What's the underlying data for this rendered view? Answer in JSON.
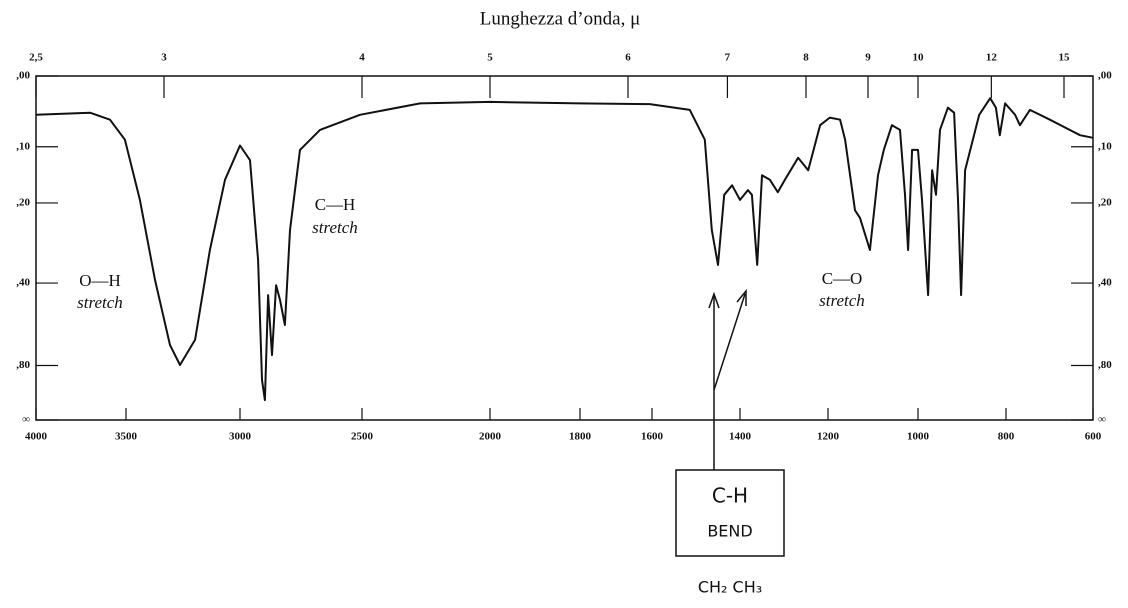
{
  "chart_data": {
    "type": "line",
    "x2label": "Lunghezza d’onda, μ",
    "x": [
      4000,
      3700,
      3589,
      3506,
      3439,
      3373,
      3307,
      3263,
      3197,
      3132,
      3066,
      3000,
      2959,
      2926,
      2910,
      2898,
      2885,
      2869,
      2852,
      2836,
      2816,
      2795,
      2754,
      2672,
      2508,
      2273,
      2000,
      1800,
      1606,
      1514,
      1480,
      1464,
      1450,
      1436,
      1418,
      1400,
      1382,
      1373,
      1361,
      1350,
      1332,
      1314,
      1298,
      1268,
      1245,
      1218,
      1196,
      1173,
      1162,
      1140,
      1129,
      1107,
      1089,
      1076,
      1058,
      1040,
      1029,
      1022,
      1013,
      1000,
      991,
      977,
      968,
      959,
      950,
      932,
      918,
      909,
      902,
      893,
      861,
      836,
      823,
      814,
      802,
      779,
      768,
      745,
      699,
      630,
      600
    ],
    "values": [
      0.052,
      0.049,
      0.059,
      0.089,
      0.194,
      0.39,
      0.662,
      0.796,
      0.632,
      0.306,
      0.156,
      0.098,
      0.122,
      0.333,
      0.935,
      1.237,
      0.44,
      0.724,
      0.407,
      0.457,
      0.559,
      0.258,
      0.105,
      0.074,
      0.052,
      0.036,
      0.034,
      0.036,
      0.037,
      0.045,
      0.089,
      0.258,
      0.346,
      0.184,
      0.166,
      0.194,
      0.175,
      0.184,
      0.346,
      0.148,
      0.156,
      0.179,
      0.156,
      0.118,
      0.139,
      0.067,
      0.056,
      0.059,
      0.089,
      0.215,
      0.231,
      0.306,
      0.148,
      0.105,
      0.067,
      0.074,
      0.184,
      0.306,
      0.105,
      0.105,
      0.194,
      0.44,
      0.139,
      0.184,
      0.074,
      0.042,
      0.049,
      0.194,
      0.44,
      0.139,
      0.052,
      0.029,
      0.042,
      0.082,
      0.036,
      0.052,
      0.067,
      0.045,
      0.059,
      0.082,
      0.086
    ],
    "color": "#111111",
    "xlim": [
      4000,
      600
    ],
    "xticks": [
      4000,
      3500,
      3000,
      2500,
      2000,
      1800,
      1600,
      1400,
      1200,
      1000,
      800,
      600
    ],
    "x2ticks": [
      {
        "value": 2.5,
        "label": "2,5"
      },
      3,
      4,
      5,
      6,
      7,
      8,
      9,
      10,
      12,
      15
    ],
    "ylim": [
      0,
      "Infinity"
    ],
    "yscale": "absorbance",
    "yticks": [
      {
        "value": 0,
        "label": ",00"
      },
      {
        "value": 0.1,
        "label": ",10"
      },
      {
        "value": 0.2,
        "label": ",20"
      },
      {
        "value": 0.4,
        "label": ",40"
      },
      {
        "value": 0.8,
        "label": ",80"
      },
      {
        "value": "Infinity",
        "label": "∞"
      }
    ],
    "annotations": [
      "O—H",
      "stretch",
      "C—H",
      "stretch",
      "C—O",
      "stretch",
      "C-H",
      "BEND",
      "CH₂  CH₃"
    ]
  }
}
